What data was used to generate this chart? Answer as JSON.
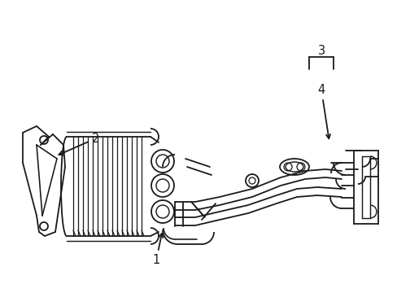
{
  "bg_color": "#ffffff",
  "line_color": "#1a1a1a",
  "lw": 1.3,
  "fig_w": 4.89,
  "fig_h": 3.6,
  "dpi": 100
}
